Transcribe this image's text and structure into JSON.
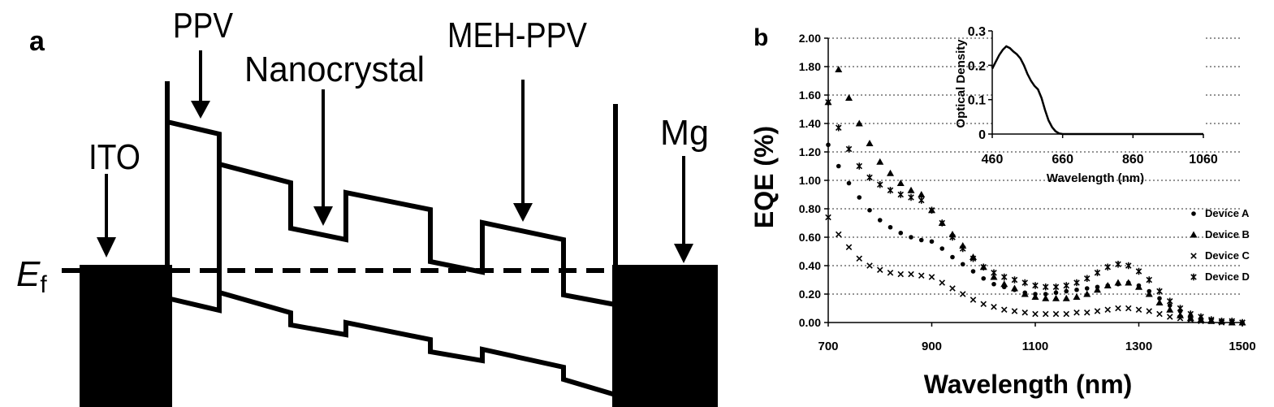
{
  "colors": {
    "ink": "#000000",
    "paper": "#ffffff",
    "grid": "#555555"
  },
  "panel_a": {
    "label": "a",
    "labels": {
      "ppv": "PPV",
      "nanocrystal": "Nanocrystal",
      "meh_ppv": "MEH-PPV",
      "ito": "ITO",
      "mg": "Mg",
      "ef_main": "E",
      "ef_sub": "f"
    }
  },
  "panel_b": {
    "label": "b",
    "legend_marker_icons": [
      "circle-icon",
      "triangle-icon",
      "x-mark-icon",
      "asterisk-icon"
    ]
  },
  "chart_data": [
    {
      "type": "scatter",
      "title": "",
      "xlabel": "Wavelength (nm)",
      "ylabel": "EQE (%)",
      "xlim": [
        700,
        1500
      ],
      "ylim": [
        0,
        2.0
      ],
      "x_ticks": [
        700,
        900,
        1100,
        1300,
        1500
      ],
      "x_tick_labels": [
        "700",
        "900",
        "1100",
        "1300",
        "1500"
      ],
      "y_ticks": [
        0,
        0.2,
        0.4,
        0.6,
        0.8,
        1.0,
        1.2,
        1.4,
        1.6,
        1.8,
        2.0
      ],
      "y_tick_labels": [
        "0.00",
        "0.20",
        "0.40",
        "0.60",
        "0.80",
        "1.00",
        "1.20",
        "1.40",
        "1.60",
        "1.80",
        "2.00"
      ],
      "grid": "horizontal dotted",
      "legend": "right",
      "series": [
        {
          "name": "Device A",
          "marker": "circle",
          "x": [
            700,
            720,
            740,
            760,
            780,
            800,
            820,
            840,
            860,
            880,
            900,
            920,
            940,
            960,
            980,
            1000,
            1020,
            1040,
            1060,
            1080,
            1100,
            1120,
            1140,
            1160,
            1180,
            1200,
            1220,
            1240,
            1260,
            1280,
            1300,
            1320,
            1340,
            1360,
            1380,
            1400,
            1420,
            1440,
            1460,
            1480,
            1500
          ],
          "values": [
            1.25,
            1.1,
            0.98,
            0.88,
            0.79,
            0.72,
            0.67,
            0.63,
            0.6,
            0.58,
            0.57,
            0.52,
            0.46,
            0.41,
            0.36,
            0.31,
            0.27,
            0.25,
            0.23,
            0.21,
            0.2,
            0.2,
            0.21,
            0.22,
            0.23,
            0.24,
            0.25,
            0.26,
            0.27,
            0.28,
            0.26,
            0.22,
            0.17,
            0.12,
            0.08,
            0.05,
            0.03,
            0.02,
            0.01,
            0.01,
            0.0
          ]
        },
        {
          "name": "Device B",
          "marker": "triangle",
          "x": [
            700,
            720,
            740,
            760,
            780,
            800,
            820,
            840,
            860,
            880,
            900,
            920,
            940,
            960,
            980,
            1000,
            1020,
            1040,
            1060,
            1080,
            1100,
            1120,
            1140,
            1160,
            1180,
            1200,
            1220,
            1240,
            1260,
            1280,
            1300,
            1320,
            1340,
            1360,
            1380,
            1400,
            1420,
            1440,
            1460,
            1480,
            1500
          ],
          "values": [
            1.55,
            1.78,
            1.58,
            1.4,
            1.26,
            1.13,
            1.05,
            0.98,
            0.93,
            0.9,
            0.79,
            0.7,
            0.62,
            0.54,
            0.46,
            0.39,
            0.32,
            0.27,
            0.24,
            0.2,
            0.18,
            0.17,
            0.17,
            0.17,
            0.18,
            0.2,
            0.23,
            0.26,
            0.28,
            0.28,
            0.25,
            0.2,
            0.14,
            0.09,
            0.05,
            0.03,
            0.02,
            0.01,
            0.01,
            0.0,
            0.0
          ]
        },
        {
          "name": "Device C",
          "marker": "x",
          "x": [
            700,
            720,
            740,
            760,
            780,
            800,
            820,
            840,
            860,
            880,
            900,
            920,
            940,
            960,
            980,
            1000,
            1020,
            1040,
            1060,
            1080,
            1100,
            1120,
            1140,
            1160,
            1180,
            1200,
            1220,
            1240,
            1260,
            1280,
            1300,
            1320,
            1340,
            1360,
            1380,
            1400,
            1420,
            1440,
            1460,
            1480,
            1500
          ],
          "values": [
            0.74,
            0.62,
            0.53,
            0.45,
            0.4,
            0.37,
            0.35,
            0.34,
            0.34,
            0.33,
            0.32,
            0.28,
            0.24,
            0.2,
            0.16,
            0.13,
            0.11,
            0.09,
            0.08,
            0.07,
            0.06,
            0.06,
            0.06,
            0.06,
            0.07,
            0.07,
            0.08,
            0.09,
            0.1,
            0.1,
            0.09,
            0.08,
            0.06,
            0.04,
            0.03,
            0.02,
            0.01,
            0.01,
            0.0,
            0.0,
            0.0
          ]
        },
        {
          "name": "Device D",
          "marker": "asterisk",
          "x": [
            700,
            720,
            740,
            760,
            780,
            800,
            820,
            840,
            860,
            880,
            900,
            920,
            940,
            960,
            980,
            1000,
            1020,
            1040,
            1060,
            1080,
            1100,
            1120,
            1140,
            1160,
            1180,
            1200,
            1220,
            1240,
            1260,
            1280,
            1300,
            1320,
            1340,
            1360,
            1380,
            1400,
            1420,
            1440,
            1460,
            1480,
            1500
          ],
          "values": [
            1.55,
            1.37,
            1.22,
            1.1,
            1.02,
            0.97,
            0.93,
            0.9,
            0.88,
            0.86,
            0.79,
            0.7,
            0.6,
            0.52,
            0.45,
            0.39,
            0.35,
            0.32,
            0.3,
            0.28,
            0.26,
            0.25,
            0.25,
            0.26,
            0.28,
            0.31,
            0.35,
            0.39,
            0.41,
            0.4,
            0.36,
            0.3,
            0.22,
            0.15,
            0.1,
            0.06,
            0.04,
            0.02,
            0.01,
            0.01,
            0.0
          ]
        }
      ]
    },
    {
      "type": "line",
      "title": "",
      "xlabel": "Wavelength (nm)",
      "ylabel": "Optical Density",
      "xlim": [
        460,
        1060
      ],
      "ylim": [
        0,
        0.3
      ],
      "x_ticks": [
        460,
        660,
        860,
        1060
      ],
      "x_tick_labels": [
        "460",
        "660",
        "860",
        "1060"
      ],
      "y_ticks": [
        0,
        0.1,
        0.2,
        0.3
      ],
      "y_tick_labels": [
        "0",
        "0.1",
        "0.2",
        "0.3"
      ],
      "grid": "none",
      "x": [
        460,
        470,
        480,
        490,
        500,
        510,
        520,
        530,
        540,
        550,
        560,
        570,
        580,
        590,
        600,
        610,
        620,
        630,
        640,
        650,
        660,
        680,
        720,
        800,
        900,
        1060
      ],
      "values": [
        0.19,
        0.21,
        0.23,
        0.245,
        0.255,
        0.25,
        0.24,
        0.232,
        0.22,
        0.2,
        0.175,
        0.155,
        0.14,
        0.13,
        0.105,
        0.07,
        0.04,
        0.02,
        0.008,
        0.002,
        0.0,
        0.0,
        0.0,
        0.0,
        0.0,
        0.0
      ]
    }
  ]
}
